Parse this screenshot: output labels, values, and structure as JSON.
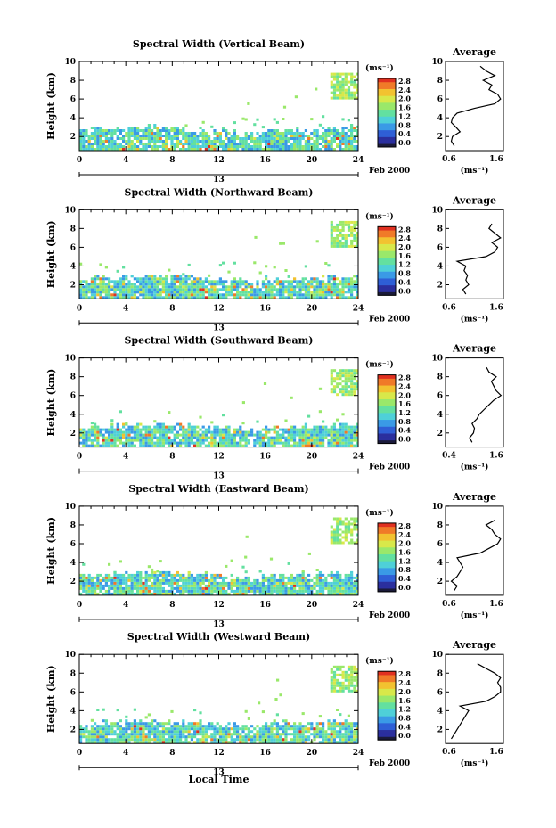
{
  "figure": {
    "date_label": "Feb 2000",
    "day_label": "13",
    "xlabel": "Local Time",
    "ylabel": "Height (km)",
    "units_label": "(ms⁻¹)",
    "average_title": "Average",
    "average_xlabel": "(ms⁻¹)"
  },
  "colors": {
    "scale": [
      "#1b1b3a",
      "#2b2f9e",
      "#2f5fd6",
      "#3a9ae6",
      "#4fd0d8",
      "#63e0a0",
      "#9ae86a",
      "#d8e84a",
      "#f2c230",
      "#f07a28",
      "#e03020"
    ]
  },
  "chart_data": [
    {
      "type": "heatmap",
      "title": "Spectral Width (Vertical Beam)",
      "xlabel": "Local Time",
      "ylabel": "Height (km)",
      "x_ticks": [
        0,
        4,
        8,
        12,
        16,
        20,
        24
      ],
      "y_ticks": [
        2,
        4,
        6,
        8,
        10
      ],
      "xlim": [
        0,
        24
      ],
      "ylim": [
        0.5,
        10
      ],
      "colorbar": {
        "label": "(ms⁻¹)",
        "ticks": [
          "0.0",
          "0.4",
          "0.8",
          "1.2",
          "1.6",
          "2.0",
          "2.4",
          "2.8"
        ],
        "range": [
          0,
          3.0
        ]
      },
      "average_profile": {
        "title": "Average",
        "xlabel": "(ms⁻¹)",
        "xticks": [
          "0.6",
          "1.6"
        ],
        "xlim": [
          0.6,
          1.6
        ],
        "heights": [
          1.0,
          1.5,
          2.0,
          2.5,
          3.0,
          3.5,
          4.0,
          4.5,
          5.0,
          5.5,
          6.0,
          6.5,
          7.0,
          7.5,
          8.0,
          8.5,
          9.0,
          9.5
        ],
        "values": [
          0.75,
          0.7,
          0.72,
          0.85,
          0.78,
          0.7,
          0.72,
          0.8,
          1.1,
          1.45,
          1.55,
          1.5,
          1.35,
          1.4,
          1.25,
          1.45,
          1.3,
          1.2
        ]
      }
    },
    {
      "type": "heatmap",
      "title": "Spectral Width (Northward Beam)",
      "xlabel": "Local Time",
      "ylabel": "Height (km)",
      "x_ticks": [
        0,
        4,
        8,
        12,
        16,
        20,
        24
      ],
      "y_ticks": [
        2,
        4,
        6,
        8,
        10
      ],
      "xlim": [
        0,
        24
      ],
      "ylim": [
        0.5,
        10
      ],
      "colorbar": {
        "label": "(ms⁻¹)",
        "ticks": [
          "0.0",
          "0.4",
          "0.8",
          "1.2",
          "1.6",
          "2.0",
          "2.4",
          "2.8"
        ],
        "range": [
          0,
          3.0
        ]
      },
      "average_profile": {
        "title": "Average",
        "xlabel": "(ms⁻¹)",
        "xticks": [
          "0.6",
          "1.6"
        ],
        "xlim": [
          0.6,
          1.6
        ],
        "heights": [
          1.0,
          1.5,
          2.0,
          2.5,
          3.0,
          3.5,
          4.0,
          4.5,
          5.0,
          5.5,
          6.0,
          6.5,
          7.0,
          7.5,
          8.0,
          8.5
        ],
        "values": [
          0.95,
          0.9,
          1.0,
          0.95,
          0.98,
          0.92,
          0.95,
          0.8,
          1.3,
          1.45,
          1.5,
          1.4,
          1.55,
          1.45,
          1.35,
          1.4
        ]
      }
    },
    {
      "type": "heatmap",
      "title": "Spectral Width (Southward Beam)",
      "xlabel": "Local Time",
      "ylabel": "Height (km)",
      "x_ticks": [
        0,
        4,
        8,
        12,
        16,
        20,
        24
      ],
      "y_ticks": [
        2,
        4,
        6,
        8,
        10
      ],
      "xlim": [
        0,
        24
      ],
      "ylim": [
        0.5,
        10
      ],
      "colorbar": {
        "label": "(ms⁻¹)",
        "ticks": [
          "0.0",
          "0.4",
          "0.8",
          "1.2",
          "1.6",
          "2.0",
          "2.4",
          "2.8"
        ],
        "range": [
          0,
          3.0
        ]
      },
      "average_profile": {
        "title": "Average",
        "xlabel": "(ms⁻¹)",
        "xticks": [
          "0.4",
          "1.6"
        ],
        "xlim": [
          0.4,
          1.6
        ],
        "heights": [
          1.0,
          1.5,
          2.0,
          2.5,
          3.0,
          3.5,
          4.0,
          4.5,
          5.0,
          5.5,
          6.0,
          6.5,
          7.0,
          7.5,
          8.0,
          8.5,
          9.0
        ],
        "values": [
          0.95,
          0.9,
          0.98,
          1.0,
          0.95,
          1.05,
          1.1,
          1.2,
          1.3,
          1.4,
          1.55,
          1.45,
          1.4,
          1.35,
          1.45,
          1.3,
          1.25
        ]
      }
    },
    {
      "type": "heatmap",
      "title": "Spectral Width (Eastward Beam)",
      "xlabel": "Local Time",
      "ylabel": "Height (km)",
      "x_ticks": [
        0,
        4,
        8,
        12,
        16,
        20,
        24
      ],
      "y_ticks": [
        2,
        4,
        6,
        8,
        10
      ],
      "xlim": [
        0,
        24
      ],
      "ylim": [
        0.5,
        10
      ],
      "colorbar": {
        "label": "(ms⁻¹)",
        "ticks": [
          "0.0",
          "0.4",
          "0.8",
          "1.2",
          "1.6",
          "2.0",
          "2.4",
          "2.8"
        ],
        "range": [
          0,
          3.0
        ]
      },
      "average_profile": {
        "title": "Average",
        "xlabel": "(ms⁻¹)",
        "xticks": [
          "0.6",
          "1.6"
        ],
        "xlim": [
          0.6,
          1.6
        ],
        "heights": [
          1.0,
          1.5,
          2.0,
          2.5,
          3.0,
          3.5,
          4.0,
          4.5,
          5.0,
          5.5,
          6.0,
          6.5,
          7.0,
          7.5,
          8.0,
          8.5
        ],
        "values": [
          0.75,
          0.8,
          0.7,
          0.8,
          0.85,
          0.9,
          0.85,
          0.8,
          1.2,
          1.35,
          1.5,
          1.55,
          1.45,
          1.4,
          1.3,
          1.45
        ]
      }
    },
    {
      "type": "heatmap",
      "title": "Spectral Width (Westward Beam)",
      "xlabel": "Local Time",
      "ylabel": "Height (km)",
      "x_ticks": [
        0,
        4,
        8,
        12,
        16,
        20,
        24
      ],
      "y_ticks": [
        2,
        4,
        6,
        8,
        10
      ],
      "xlim": [
        0,
        24
      ],
      "ylim": [
        0.5,
        10
      ],
      "colorbar": {
        "label": "(ms⁻¹)",
        "ticks": [
          "0.0",
          "0.4",
          "0.8",
          "1.2",
          "1.6",
          "2.0",
          "2.4",
          "2.8"
        ],
        "range": [
          0,
          3.0
        ]
      },
      "average_profile": {
        "title": "Average",
        "xlabel": "(ms⁻¹)",
        "xticks": [
          "0.6",
          "1.6"
        ],
        "xlim": [
          0.6,
          1.6
        ],
        "heights": [
          1.0,
          1.5,
          2.0,
          2.5,
          3.0,
          3.5,
          4.0,
          4.5,
          5.0,
          5.5,
          6.0,
          6.5,
          7.0,
          7.5,
          8.0,
          8.5,
          9.0
        ],
        "values": [
          0.7,
          0.75,
          0.8,
          0.85,
          0.9,
          0.95,
          1.0,
          0.85,
          1.3,
          1.45,
          1.55,
          1.55,
          1.5,
          1.55,
          1.45,
          1.3,
          1.15
        ]
      }
    }
  ]
}
